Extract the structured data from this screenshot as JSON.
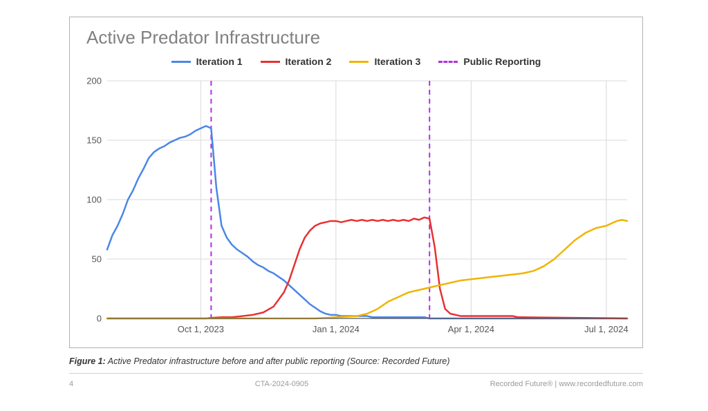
{
  "chart": {
    "type": "line",
    "title": "Active Predator Infrastructure",
    "title_color": "#808080",
    "title_fontsize": 26,
    "background_color": "#ffffff",
    "border_color": "#b0b0b0",
    "grid_color": "#d8d8d8",
    "axis_color": "#555555",
    "ylim": [
      0,
      200
    ],
    "yticks": [
      0,
      50,
      100,
      150,
      200
    ],
    "x_domain_ordinal": [
      0,
      100
    ],
    "xticks": [
      {
        "pos": 18,
        "label": "Oct 1, 2023"
      },
      {
        "pos": 44,
        "label": "Jan 1, 2024"
      },
      {
        "pos": 70,
        "label": "Apr 1, 2024"
      },
      {
        "pos": 96,
        "label": "Jul 1, 2024"
      }
    ],
    "x_gridlines": [
      18,
      44,
      62,
      70,
      96
    ],
    "legend": [
      {
        "label": "Iteration 1",
        "color": "#4a86e8",
        "dashed": false
      },
      {
        "label": "Iteration 2",
        "color": "#e83030",
        "dashed": false
      },
      {
        "label": "Iteration 3",
        "color": "#f0b400",
        "dashed": false
      },
      {
        "label": "Public Reporting",
        "color": "#b030e0",
        "dashed": true
      }
    ],
    "series": [
      {
        "name": "Iteration 1",
        "color": "#4a86e8",
        "width": 2.5,
        "points": [
          [
            0,
            58
          ],
          [
            1,
            70
          ],
          [
            2,
            78
          ],
          [
            3,
            88
          ],
          [
            4,
            100
          ],
          [
            5,
            108
          ],
          [
            6,
            118
          ],
          [
            7,
            126
          ],
          [
            8,
            135
          ],
          [
            9,
            140
          ],
          [
            10,
            143
          ],
          [
            11,
            145
          ],
          [
            12,
            148
          ],
          [
            13,
            150
          ],
          [
            14,
            152
          ],
          [
            15,
            153
          ],
          [
            16,
            155
          ],
          [
            17,
            158
          ],
          [
            18,
            160
          ],
          [
            19,
            162
          ],
          [
            20,
            160
          ],
          [
            21,
            110
          ],
          [
            22,
            78
          ],
          [
            23,
            68
          ],
          [
            24,
            62
          ],
          [
            25,
            58
          ],
          [
            26,
            55
          ],
          [
            27,
            52
          ],
          [
            28,
            48
          ],
          [
            29,
            45
          ],
          [
            30,
            43
          ],
          [
            31,
            40
          ],
          [
            32,
            38
          ],
          [
            33,
            35
          ],
          [
            34,
            32
          ],
          [
            35,
            28
          ],
          [
            36,
            24
          ],
          [
            37,
            20
          ],
          [
            38,
            16
          ],
          [
            39,
            12
          ],
          [
            40,
            9
          ],
          [
            41,
            6
          ],
          [
            42,
            4
          ],
          [
            43,
            3
          ],
          [
            44,
            3
          ],
          [
            45,
            2
          ],
          [
            46,
            2
          ],
          [
            47,
            2
          ],
          [
            48,
            2
          ],
          [
            49,
            2
          ],
          [
            50,
            2
          ],
          [
            51,
            1
          ],
          [
            52,
            1
          ],
          [
            53,
            1
          ],
          [
            54,
            1
          ],
          [
            55,
            1
          ],
          [
            56,
            1
          ],
          [
            57,
            1
          ],
          [
            58,
            1
          ],
          [
            59,
            1
          ],
          [
            60,
            1
          ],
          [
            61,
            1
          ],
          [
            62,
            0
          ],
          [
            63,
            0
          ],
          [
            64,
            0
          ],
          [
            65,
            0
          ],
          [
            66,
            0
          ],
          [
            67,
            0
          ],
          [
            68,
            0
          ],
          [
            69,
            0
          ],
          [
            70,
            0
          ],
          [
            71,
            0
          ],
          [
            72,
            0
          ],
          [
            73,
            0
          ],
          [
            74,
            0
          ],
          [
            75,
            0
          ],
          [
            76,
            0
          ],
          [
            77,
            0
          ],
          [
            78,
            0
          ],
          [
            79,
            0
          ],
          [
            80,
            0
          ],
          [
            100,
            0
          ]
        ]
      },
      {
        "name": "Iteration 2",
        "color": "#e83030",
        "width": 2.5,
        "points": [
          [
            0,
            0
          ],
          [
            18,
            0
          ],
          [
            19,
            0
          ],
          [
            20,
            0.5
          ],
          [
            22,
            1
          ],
          [
            24,
            1
          ],
          [
            26,
            2
          ],
          [
            28,
            3
          ],
          [
            30,
            5
          ],
          [
            32,
            10
          ],
          [
            34,
            22
          ],
          [
            35,
            32
          ],
          [
            36,
            45
          ],
          [
            37,
            58
          ],
          [
            38,
            68
          ],
          [
            39,
            74
          ],
          [
            40,
            78
          ],
          [
            41,
            80
          ],
          [
            42,
            81
          ],
          [
            43,
            82
          ],
          [
            44,
            82
          ],
          [
            45,
            81
          ],
          [
            46,
            82
          ],
          [
            47,
            83
          ],
          [
            48,
            82
          ],
          [
            49,
            83
          ],
          [
            50,
            82
          ],
          [
            51,
            83
          ],
          [
            52,
            82
          ],
          [
            53,
            83
          ],
          [
            54,
            82
          ],
          [
            55,
            83
          ],
          [
            56,
            82
          ],
          [
            57,
            83
          ],
          [
            58,
            82
          ],
          [
            59,
            84
          ],
          [
            60,
            83
          ],
          [
            61,
            85
          ],
          [
            62,
            84
          ],
          [
            63,
            60
          ],
          [
            64,
            25
          ],
          [
            65,
            8
          ],
          [
            66,
            4
          ],
          [
            67,
            3
          ],
          [
            68,
            2
          ],
          [
            69,
            2
          ],
          [
            70,
            2
          ],
          [
            71,
            2
          ],
          [
            72,
            2
          ],
          [
            73,
            2
          ],
          [
            74,
            2
          ],
          [
            75,
            2
          ],
          [
            76,
            2
          ],
          [
            77,
            2
          ],
          [
            78,
            2
          ],
          [
            79,
            1
          ],
          [
            80,
            1
          ],
          [
            100,
            0
          ]
        ]
      },
      {
        "name": "Iteration 3",
        "color": "#f0b400",
        "width": 2.5,
        "points": [
          [
            0,
            0
          ],
          [
            40,
            0
          ],
          [
            42,
            0.5
          ],
          [
            44,
            1
          ],
          [
            46,
            1.5
          ],
          [
            48,
            2
          ],
          [
            50,
            4
          ],
          [
            52,
            8
          ],
          [
            54,
            14
          ],
          [
            56,
            18
          ],
          [
            58,
            22
          ],
          [
            60,
            24
          ],
          [
            62,
            26
          ],
          [
            64,
            28
          ],
          [
            66,
            30
          ],
          [
            68,
            32
          ],
          [
            70,
            33
          ],
          [
            72,
            34
          ],
          [
            74,
            35
          ],
          [
            76,
            36
          ],
          [
            78,
            37
          ],
          [
            80,
            38
          ],
          [
            82,
            40
          ],
          [
            84,
            44
          ],
          [
            86,
            50
          ],
          [
            88,
            58
          ],
          [
            90,
            66
          ],
          [
            92,
            72
          ],
          [
            94,
            76
          ],
          [
            96,
            78
          ],
          [
            97,
            80
          ],
          [
            98,
            82
          ],
          [
            99,
            83
          ],
          [
            100,
            82
          ]
        ]
      }
    ],
    "vlines": [
      {
        "x": 20,
        "color": "#b030e0",
        "dashed": true,
        "width": 2
      },
      {
        "x": 62,
        "color": "#b030e0",
        "dashed": true,
        "width": 2
      }
    ]
  },
  "caption": {
    "prefix": "Figure 1:",
    "text": " Active Predator infrastructure before and after public reporting (Source: Recorded Future)"
  },
  "footer": {
    "page": "4",
    "center": "CTA-2024-0905",
    "right": "Recorded Future® | www.recordedfuture.com"
  }
}
